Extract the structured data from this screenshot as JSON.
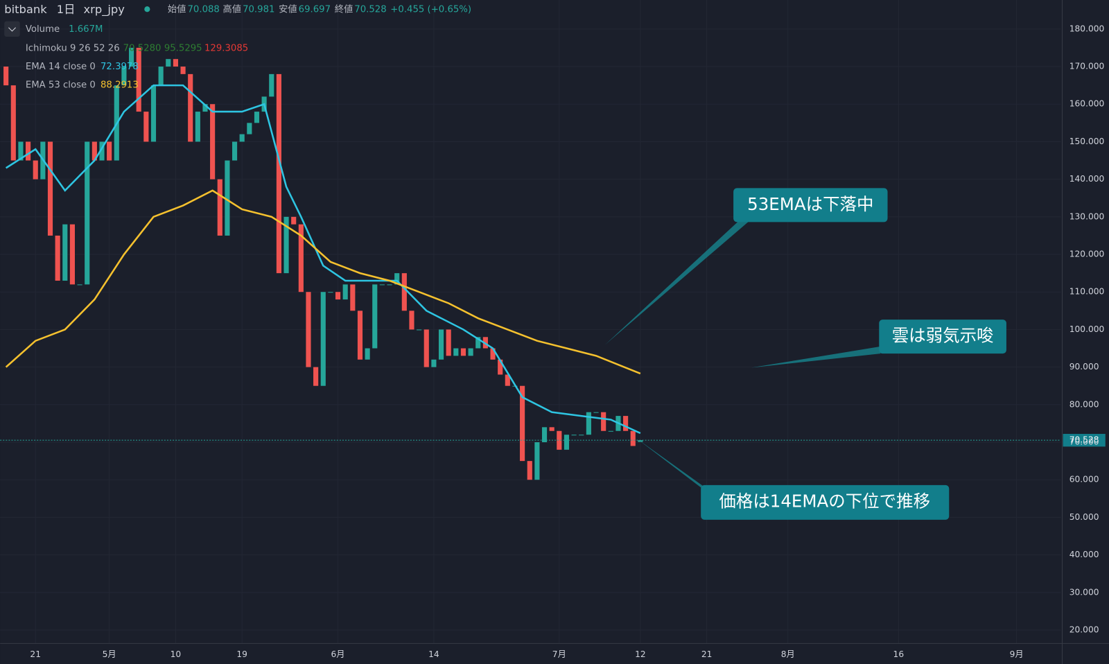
{
  "header": {
    "exchange": "bitbank",
    "interval": "1日",
    "symbol": "xrp_jpy",
    "open_label": "始値",
    "open": "70.088",
    "high_label": "高値",
    "high": "70.981",
    "low_label": "安値",
    "low": "69.697",
    "close_label": "終値",
    "close": "70.528",
    "change": "+0.455 (+0.65%)"
  },
  "legend": {
    "volume": "Volume",
    "volume_value": "1.667M",
    "ichimoku": "Ichimoku 9 26 52 26",
    "ichimoku_values": [
      "70.5280",
      "95.5295",
      "129.3085"
    ],
    "ema14": "EMA 14 close 0",
    "ema53": "EMA 53 close 0"
  },
  "annotations": [
    "53EMAは下落中",
    "雲は弱気示唆",
    "価格は14EMAの下位で推移"
  ],
  "chart_data": {
    "type": "candlestick",
    "xlim": [
      -0.8,
      143
    ],
    "ylim": [
      16.42,
      187.72
    ],
    "xticks": [
      {
        "value": 4,
        "label": "21"
      },
      {
        "value": 14,
        "label": "5月"
      },
      {
        "value": 23,
        "label": "10"
      },
      {
        "value": 32,
        "label": "19"
      },
      {
        "value": 45,
        "label": "6月"
      },
      {
        "value": 58,
        "label": "14"
      },
      {
        "value": 75,
        "label": "7月"
      },
      {
        "value": 86,
        "label": "12"
      },
      {
        "value": 95,
        "label": "21"
      },
      {
        "value": 106,
        "label": "8月"
      },
      {
        "value": 121,
        "label": "16"
      },
      {
        "value": 137,
        "label": "9月"
      }
    ],
    "yticks": [
      {
        "value": 20,
        "label": "20.000"
      },
      {
        "value": 30,
        "label": "30.000"
      },
      {
        "value": 40,
        "label": "40.000"
      },
      {
        "value": 50,
        "label": "50.000"
      },
      {
        "value": 60,
        "label": "60.000"
      },
      {
        "value": 70,
        "label": "70.000"
      },
      {
        "value": 80,
        "label": "80.000"
      },
      {
        "value": 90,
        "label": "90.000"
      },
      {
        "value": 100,
        "label": "100.000"
      },
      {
        "value": 110,
        "label": "110.000"
      },
      {
        "value": 120,
        "label": "120.000"
      },
      {
        "value": 130,
        "label": "130.000"
      },
      {
        "value": 140,
        "label": "140.000"
      },
      {
        "value": 150,
        "label": "150.000"
      },
      {
        "value": 160,
        "label": "160.000"
      },
      {
        "value": 170,
        "label": "170.000"
      },
      {
        "value": 180,
        "label": "180.000"
      }
    ],
    "last_price": 70.528,
    "up_color": "#26a69a",
    "down_color": "#ef5350",
    "open": [
      170,
      165,
      145,
      150,
      145,
      140,
      150,
      125,
      113,
      128,
      112,
      112,
      150,
      145,
      150,
      145,
      165,
      170,
      175,
      158,
      150,
      165,
      170,
      172,
      170,
      168,
      150,
      158,
      160,
      140,
      125,
      145,
      150,
      152,
      155,
      158,
      162,
      168,
      115,
      130,
      128,
      110,
      90,
      85,
      110,
      110,
      108,
      112,
      105,
      92,
      95,
      112,
      112,
      112,
      115,
      105,
      100,
      100,
      90,
      92,
      100,
      93,
      95,
      93,
      95,
      98,
      95,
      92,
      88,
      85,
      85,
      65,
      60,
      70,
      74,
      73,
      68,
      72,
      72,
      72,
      78,
      78,
      73,
      73,
      77,
      73,
      70.088
    ],
    "close": [
      165,
      145,
      150,
      145,
      140,
      150,
      125,
      113,
      128,
      112,
      112,
      150,
      145,
      150,
      145,
      165,
      170,
      175,
      158,
      150,
      165,
      170,
      172,
      170,
      168,
      150,
      158,
      160,
      140,
      125,
      145,
      150,
      152,
      155,
      158,
      162,
      168,
      115,
      130,
      128,
      110,
      90,
      85,
      110,
      110,
      108,
      112,
      105,
      92,
      95,
      112,
      112,
      112,
      115,
      105,
      100,
      100,
      90,
      92,
      100,
      93,
      95,
      93,
      95,
      98,
      95,
      92,
      88,
      85,
      85,
      65,
      60,
      70,
      74,
      73,
      68,
      72,
      72,
      72,
      78,
      78,
      73,
      73,
      77,
      73,
      69,
      70.528
    ],
    "series": [
      {
        "name": "EMA 14",
        "color": "#2ec5e2",
        "x": [
          0,
          4,
          8,
          12,
          16,
          20,
          24,
          28,
          32,
          35,
          38,
          40,
          43,
          46,
          50,
          53,
          57,
          62,
          66,
          70,
          74,
          78,
          82,
          86
        ],
        "values": [
          143,
          148,
          137,
          145,
          158,
          165,
          165,
          158,
          158,
          160,
          138,
          130,
          117,
          113,
          113,
          113,
          105,
          100,
          95,
          82,
          78,
          77,
          76,
          72.3978
        ]
      },
      {
        "name": "EMA 53",
        "color": "#f5c12e",
        "x": [
          0,
          4,
          8,
          12,
          16,
          20,
          24,
          28,
          32,
          36,
          40,
          44,
          48,
          52,
          56,
          60,
          64,
          68,
          72,
          76,
          80,
          86
        ],
        "values": [
          90,
          97,
          100,
          108,
          120,
          130,
          133,
          137,
          132,
          130,
          125,
          118,
          115,
          113,
          110,
          107,
          103,
          100,
          97,
          95,
          93,
          88.2913
        ]
      }
    ]
  }
}
